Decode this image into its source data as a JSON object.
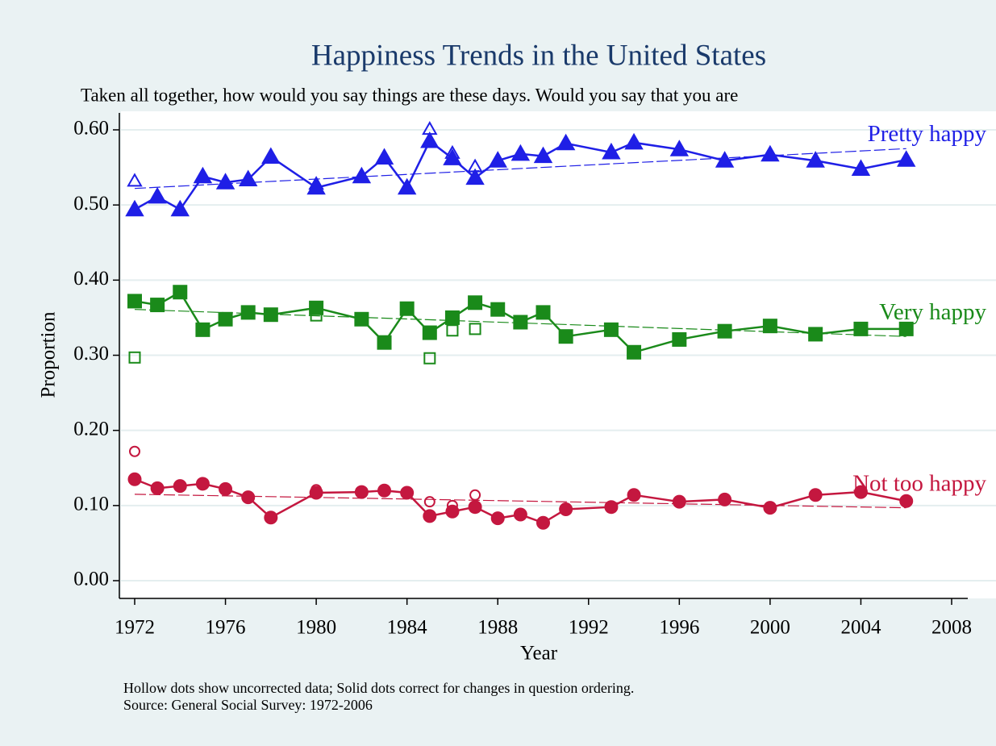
{
  "chart_data": {
    "type": "line",
    "title": "Happiness Trends in the United States",
    "subtitle": "Taken all together, how would you say things are these days. Would you say that you are",
    "x_label": "Year",
    "y_label": "Proportion",
    "notes": [
      "Hollow dots show uncorrected data; Solid dots correct for changes in question ordering.",
      "Source: General Social Survey: 1972-2006"
    ],
    "x": [
      1972,
      1973,
      1974,
      1975,
      1976,
      1977,
      1978,
      1980,
      1982,
      1983,
      1984,
      1985,
      1986,
      1987,
      1988,
      1989,
      1990,
      1991,
      1993,
      1994,
      1996,
      1998,
      2000,
      2002,
      2004,
      2006
    ],
    "fit_x": [
      1972,
      2006
    ],
    "series": [
      {
        "name": "Pretty happy",
        "color": "#1f1fe6",
        "marker": "triangle",
        "values": [
          0.494,
          0.511,
          0.494,
          0.538,
          0.53,
          0.534,
          0.564,
          0.523,
          0.538,
          0.563,
          0.523,
          0.585,
          0.562,
          0.536,
          0.559,
          0.568,
          0.565,
          0.582,
          0.57,
          0.583,
          0.574,
          0.559,
          0.567,
          0.559,
          0.548,
          0.56
        ],
        "hollow_values": [
          0.532,
          null,
          null,
          null,
          null,
          null,
          null,
          0.528,
          null,
          null,
          null,
          0.601,
          0.569,
          0.551,
          null,
          null,
          null,
          null,
          null,
          null,
          null,
          null,
          null,
          null,
          null,
          null
        ],
        "fit_values": [
          0.522,
          0.575
        ]
      },
      {
        "name": "Very happy",
        "color": "#1a8a1a",
        "marker": "square",
        "values": [
          0.372,
          0.367,
          0.384,
          0.334,
          0.348,
          0.357,
          0.354,
          0.363,
          0.348,
          0.317,
          0.362,
          0.33,
          0.35,
          0.37,
          0.361,
          0.344,
          0.357,
          0.325,
          0.334,
          0.304,
          0.321,
          0.332,
          0.339,
          0.328,
          0.335,
          0.335
        ],
        "hollow_values": [
          0.297,
          null,
          null,
          null,
          null,
          null,
          null,
          0.353,
          null,
          null,
          null,
          0.296,
          0.333,
          0.335,
          null,
          null,
          null,
          null,
          null,
          null,
          null,
          null,
          null,
          null,
          null,
          null
        ],
        "fit_values": [
          0.361,
          0.325
        ]
      },
      {
        "name": "Not too happy",
        "color": "#c4173f",
        "marker": "circle",
        "values": [
          0.135,
          0.123,
          0.126,
          0.129,
          0.122,
          0.111,
          0.084,
          0.117,
          0.118,
          0.12,
          0.117,
          0.086,
          0.092,
          0.098,
          0.083,
          0.088,
          0.077,
          0.095,
          0.098,
          0.114,
          0.105,
          0.108,
          0.097,
          0.114,
          0.118,
          0.106
        ],
        "hollow_values": [
          0.172,
          null,
          null,
          null,
          null,
          null,
          null,
          0.121,
          null,
          null,
          null,
          0.105,
          0.1,
          0.114,
          null,
          null,
          null,
          null,
          null,
          null,
          null,
          null,
          null,
          null,
          null,
          null
        ],
        "fit_values": [
          0.115,
          0.097
        ]
      }
    ],
    "xlim": [
      1972,
      2008
    ],
    "xticks": [
      1972,
      1976,
      1980,
      1984,
      1988,
      1992,
      1996,
      2000,
      2004,
      2008
    ],
    "ylim": [
      0,
      0.6
    ],
    "yticks": [
      {
        "value": 0,
        "label": "0.00"
      },
      {
        "value": 0.1,
        "label": "0.10"
      },
      {
        "value": 0.2,
        "label": "0.20"
      },
      {
        "value": 0.3,
        "label": "0.30"
      },
      {
        "value": 0.4,
        "label": "0.40"
      },
      {
        "value": 0.5,
        "label": "0.50"
      },
      {
        "value": 0.6,
        "label": "0.60"
      }
    ],
    "grid": true
  }
}
